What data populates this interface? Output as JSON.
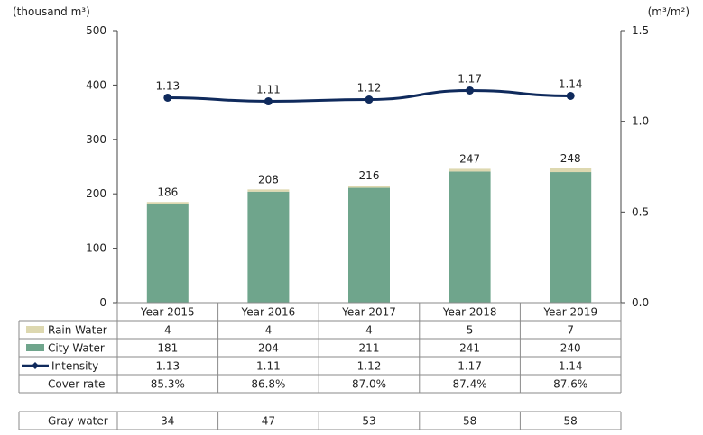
{
  "chart_data": {
    "type": "bar",
    "categories": [
      "Year 2015",
      "Year 2016",
      "Year 2017",
      "Year 2018",
      "Year 2019"
    ],
    "series": [
      {
        "name": "City Water",
        "type": "bar",
        "stack": "water",
        "values": [
          181,
          204,
          211,
          241,
          240
        ],
        "color": "#6fa58c"
      },
      {
        "name": "Rain Water",
        "type": "bar",
        "stack": "water",
        "values": [
          4,
          4,
          4,
          5,
          7
        ],
        "color": "#ddd8b0"
      },
      {
        "name": "Intensity",
        "type": "line",
        "axis": "right",
        "values": [
          1.13,
          1.11,
          1.12,
          1.17,
          1.14
        ],
        "color": "#0f2a5c"
      }
    ],
    "totals": [
      186,
      208,
      216,
      247,
      248
    ],
    "intensity_labels": [
      "1.13",
      "1.11",
      "1.12",
      "1.17",
      "1.14"
    ],
    "left_axis": {
      "unit_label": "(thousand m³)",
      "ylim": [
        0,
        500
      ],
      "ticks": [
        "0",
        "100",
        "200",
        "300",
        "400",
        "500"
      ]
    },
    "right_axis": {
      "unit_label": "(m³/m²)",
      "ylim": [
        0,
        1.5
      ],
      "ticks": [
        "0.0",
        "0.5",
        "1.0",
        "1.5"
      ]
    },
    "grid": false
  },
  "table": {
    "rows": [
      {
        "label": "Rain Water",
        "marker": "rain-swatch",
        "values": [
          "4",
          "4",
          "4",
          "5",
          "7"
        ]
      },
      {
        "label": "City Water",
        "marker": "city-swatch",
        "values": [
          "181",
          "204",
          "211",
          "241",
          "240"
        ]
      },
      {
        "label": "Intensity",
        "marker": "line-diamond",
        "values": [
          "1.13",
          "1.11",
          "1.12",
          "1.17",
          "1.14"
        ]
      },
      {
        "label": "Cover rate",
        "marker": "none",
        "values": [
          "85.3%",
          "86.8%",
          "87.0%",
          "87.4%",
          "87.6%"
        ]
      }
    ],
    "gray_water": {
      "label": "Gray water",
      "values": [
        "34",
        "47",
        "53",
        "58",
        "58"
      ]
    }
  }
}
